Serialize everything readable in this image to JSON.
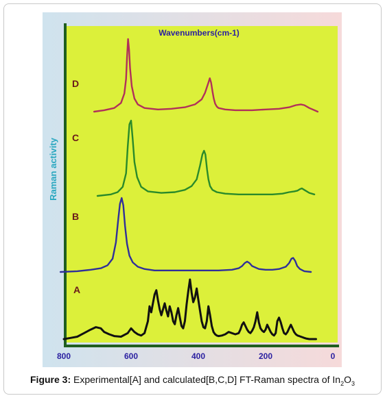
{
  "figure": {
    "caption_label": "Figure 3:",
    "caption_text": " Experimental[A] and calculated[B,C,D] FT-Raman spectra of In",
    "caption_sub1": "2",
    "caption_mid": "O",
    "caption_sub2": "3"
  },
  "colors": {
    "plot_bg": "#dcf03a",
    "axis": "#1f5e1f",
    "title": "#2a1fa0",
    "xtick": "#2a1fa0",
    "ylabel": "#2aa7c0",
    "series_label": "#6a1a1a",
    "bg_left": "#cfe3ee",
    "bg_right": "#f6dada"
  },
  "chart_data": {
    "type": "line",
    "title": "Wavenumbers(cm-1)",
    "xlabel": "",
    "ylabel": "Raman activity",
    "x_ticks": [
      800,
      600,
      400,
      200,
      0
    ],
    "xlim": [
      800,
      0
    ],
    "x_reversed": true,
    "grid": false,
    "legend": "none",
    "series_note": "y values are relative Raman activity (0 = baseline, 1 = tallest peak) for each stacked trace",
    "series": [
      {
        "name": "D",
        "color": "#b0305a",
        "x": [
          710,
          680,
          650,
          630,
          620,
          615,
          612,
          609,
          606,
          603,
          598,
          590,
          580,
          560,
          520,
          480,
          440,
          410,
          390,
          380,
          370,
          366,
          362,
          358,
          354,
          350,
          345,
          340,
          320,
          290,
          240,
          200,
          160,
          130,
          110,
          95,
          85,
          70,
          55,
          45
        ],
        "y": [
          0.0,
          0.02,
          0.05,
          0.12,
          0.25,
          0.45,
          0.75,
          1.0,
          0.85,
          0.6,
          0.35,
          0.18,
          0.1,
          0.05,
          0.03,
          0.04,
          0.06,
          0.1,
          0.17,
          0.26,
          0.4,
          0.46,
          0.4,
          0.28,
          0.18,
          0.11,
          0.07,
          0.05,
          0.03,
          0.02,
          0.02,
          0.03,
          0.04,
          0.06,
          0.09,
          0.1,
          0.09,
          0.05,
          0.02,
          0.0
        ]
      },
      {
        "name": "C",
        "color": "#2a8a2a",
        "x": [
          700,
          660,
          640,
          625,
          615,
          610,
          605,
          600,
          595,
          590,
          582,
          570,
          550,
          510,
          470,
          440,
          420,
          405,
          395,
          388,
          383,
          379,
          374,
          370,
          365,
          358,
          345,
          320,
          280,
          230,
          180,
          150,
          130,
          115,
          105,
          98,
          92,
          85,
          70,
          55
        ],
        "y": [
          0.0,
          0.02,
          0.05,
          0.12,
          0.3,
          0.65,
          0.95,
          1.0,
          0.75,
          0.45,
          0.25,
          0.12,
          0.06,
          0.04,
          0.05,
          0.08,
          0.13,
          0.22,
          0.4,
          0.55,
          0.6,
          0.55,
          0.35,
          0.22,
          0.13,
          0.08,
          0.05,
          0.03,
          0.02,
          0.02,
          0.02,
          0.03,
          0.05,
          0.06,
          0.07,
          0.09,
          0.1,
          0.08,
          0.04,
          0.02
        ]
      },
      {
        "name": "B",
        "color": "#2f2f9a",
        "x": [
          810,
          760,
          720,
          690,
          670,
          655,
          645,
          638,
          633,
          628,
          623,
          618,
          612,
          605,
          595,
          580,
          560,
          530,
          500,
          460,
          420,
          380,
          340,
          300,
          280,
          270,
          262,
          255,
          248,
          240,
          220,
          200,
          180,
          160,
          140,
          130,
          123,
          118,
          112,
          106,
          98,
          85,
          65
        ],
        "y": [
          0.0,
          0.01,
          0.03,
          0.05,
          0.09,
          0.18,
          0.4,
          0.72,
          0.92,
          1.0,
          0.9,
          0.62,
          0.38,
          0.22,
          0.13,
          0.07,
          0.04,
          0.02,
          0.02,
          0.02,
          0.02,
          0.02,
          0.02,
          0.03,
          0.05,
          0.08,
          0.12,
          0.14,
          0.12,
          0.08,
          0.04,
          0.03,
          0.03,
          0.04,
          0.07,
          0.12,
          0.18,
          0.19,
          0.15,
          0.08,
          0.04,
          0.01,
          0.0
        ]
      },
      {
        "name": "A",
        "color": "#111111",
        "x": [
          800,
          780,
          760,
          740,
          720,
          705,
          690,
          680,
          665,
          650,
          630,
          610,
          600,
          590,
          580,
          570,
          560,
          550,
          545,
          540,
          535,
          530,
          525,
          520,
          515,
          510,
          500,
          495,
          490,
          485,
          480,
          475,
          470,
          465,
          460,
          455,
          450,
          445,
          440,
          435,
          430,
          425,
          420,
          415,
          410,
          405,
          400,
          395,
          390,
          385,
          380,
          375,
          370,
          365,
          360,
          355,
          350,
          345,
          340,
          330,
          320,
          310,
          300,
          290,
          280,
          275,
          270,
          265,
          260,
          255,
          250,
          245,
          240,
          235,
          230,
          225,
          220,
          215,
          210,
          205,
          200,
          195,
          190,
          185,
          180,
          175,
          170,
          165,
          160,
          155,
          150,
          145,
          140,
          135,
          130,
          125,
          120,
          115,
          110,
          105,
          100,
          95,
          90,
          85,
          80,
          70,
          60,
          50
        ],
        "y": [
          0.0,
          0.02,
          0.04,
          0.1,
          0.16,
          0.2,
          0.18,
          0.12,
          0.08,
          0.05,
          0.04,
          0.1,
          0.18,
          0.12,
          0.08,
          0.06,
          0.1,
          0.3,
          0.55,
          0.45,
          0.6,
          0.75,
          0.82,
          0.65,
          0.5,
          0.4,
          0.6,
          0.48,
          0.38,
          0.55,
          0.45,
          0.3,
          0.25,
          0.4,
          0.52,
          0.36,
          0.22,
          0.18,
          0.3,
          0.58,
          0.8,
          1.0,
          0.78,
          0.62,
          0.7,
          0.85,
          0.66,
          0.48,
          0.3,
          0.2,
          0.18,
          0.3,
          0.55,
          0.4,
          0.22,
          0.12,
          0.08,
          0.06,
          0.05,
          0.06,
          0.08,
          0.12,
          0.1,
          0.08,
          0.1,
          0.16,
          0.24,
          0.28,
          0.22,
          0.16,
          0.12,
          0.1,
          0.14,
          0.2,
          0.3,
          0.45,
          0.28,
          0.18,
          0.14,
          0.12,
          0.16,
          0.24,
          0.18,
          0.12,
          0.08,
          0.06,
          0.1,
          0.3,
          0.36,
          0.28,
          0.18,
          0.1,
          0.08,
          0.12,
          0.18,
          0.24,
          0.18,
          0.12,
          0.08,
          0.06,
          0.05,
          0.04,
          0.03,
          0.02,
          0.01,
          0.0,
          0.0,
          0.0
        ]
      }
    ]
  }
}
